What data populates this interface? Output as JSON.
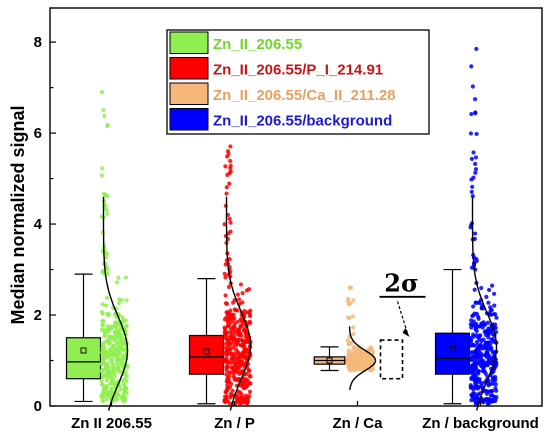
{
  "chart_data": {
    "type": "box",
    "ylabel": "Median normalized signal",
    "xlabel": "",
    "ylim": [
      0,
      8.75
    ],
    "yticks": [
      0,
      2,
      4,
      6,
      8
    ],
    "categories": [
      "Zn II 206.55",
      "Zn / P",
      "Zn / Ca",
      "Zn / background"
    ],
    "legend": {
      "placement": "top-center",
      "entries": [
        {
          "label": "Zn_II_206.55",
          "color": "#90ee50",
          "text_color": "#6fd62a"
        },
        {
          "label": "Zn_II_206.55/P_I_214.91",
          "color": "#ff0000",
          "text_color": "#c81414"
        },
        {
          "label": "Zn_II_206.55/Ca_II_211.28",
          "color": "#f5b87a",
          "text_color": "#e8a060"
        },
        {
          "label": "Zn_II_206.55/background",
          "color": "#0000ff",
          "text_color": "#1a1ad0"
        }
      ]
    },
    "series": [
      {
        "name": "Zn_II_206.55",
        "color": "#90ee50",
        "box": {
          "whisker_low": 0.1,
          "q1": 0.6,
          "median": 0.97,
          "q3": 1.5,
          "whisker_high": 2.9,
          "mean": 1.22
        },
        "scatter_max": 6.9
      },
      {
        "name": "Zn_II_206.55/P_I_214.91",
        "color": "#ff0000",
        "box": {
          "whisker_low": 0.05,
          "q1": 0.7,
          "median": 1.08,
          "q3": 1.55,
          "whisker_high": 2.8,
          "mean": 1.2
        },
        "scatter_max": 6.1
      },
      {
        "name": "Zn_II_206.55/Ca_II_211.28",
        "color": "#f5b87a",
        "box": {
          "whisker_low": 0.78,
          "q1": 0.92,
          "median": 1.0,
          "q3": 1.08,
          "whisker_high": 1.3,
          "mean": 1.0
        },
        "scatter_max": 2.6
      },
      {
        "name": "Zn_II_206.55/background",
        "color": "#0000ff",
        "box": {
          "whisker_low": 0.05,
          "q1": 0.7,
          "median": 1.05,
          "q3": 1.6,
          "whisker_high": 3.0,
          "mean": 1.25
        },
        "scatter_max": 7.85
      }
    ],
    "annotation": {
      "text": "2σ",
      "target_category": "Zn / Ca"
    },
    "grid": false
  }
}
